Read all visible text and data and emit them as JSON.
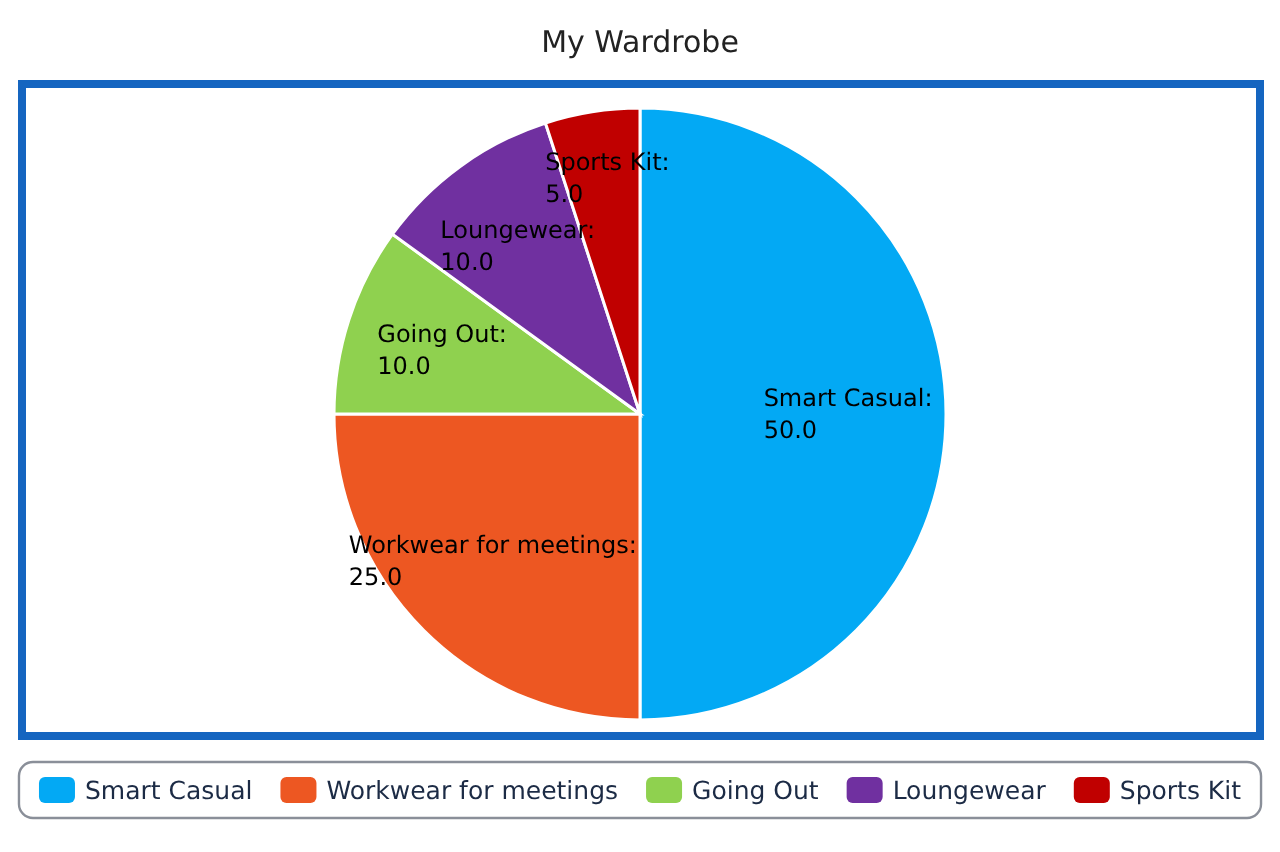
{
  "chart_data": {
    "type": "pie",
    "title": "My Wardrobe",
    "categories": [
      "Smart Casual",
      "Workwear for meetings",
      "Going Out",
      "Loungewear",
      "Sports Kit"
    ],
    "values": [
      50,
      25,
      10,
      10,
      5
    ],
    "colors": [
      "#03a9f4",
      "#ed5722",
      "#8fd14f",
      "#7030a0",
      "#c00000"
    ],
    "value_labels": [
      "Smart Casual:\n50.0",
      "Workwear for meetings:\n25.0",
      "Going Out:\n10.0",
      "Loungewear:\n10.0",
      "Sports Kit:\n5.0"
    ],
    "legend": "bottom"
  }
}
